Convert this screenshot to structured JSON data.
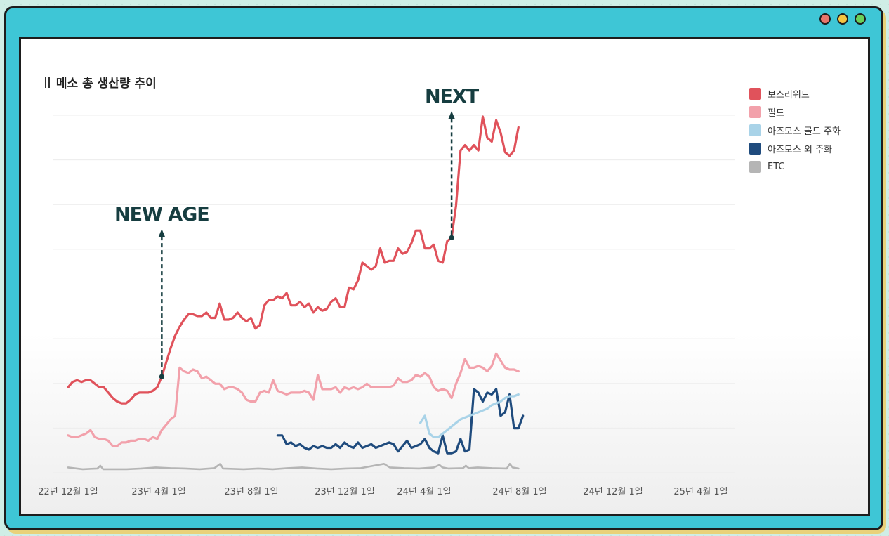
{
  "window": {
    "buttons": [
      {
        "name": "close",
        "color": "#e8756b"
      },
      {
        "name": "minimize",
        "color": "#f5c542"
      },
      {
        "name": "maximize",
        "color": "#6ad05a"
      }
    ]
  },
  "chart_data": {
    "type": "line",
    "title": "메소 총 생산량 추이",
    "xlabel": "",
    "ylabel": "",
    "x_ticks": [
      "22년 12월 1일",
      "23년 4월 1일",
      "23년 8월 1일",
      "23년 12월 1일",
      "24년 4월 1일",
      "24년 8월 1일",
      "24년 12월 1일",
      "25년 4월 1일"
    ],
    "y_axis": "unlabeled (relative scale 0-100)",
    "ylim": [
      0,
      100
    ],
    "grid": "horizontal",
    "legend_position": "right",
    "series": [
      {
        "name": "보스리워드",
        "color": "#e0525b",
        "points": [
          [
            0,
            24
          ],
          [
            1,
            25.5
          ],
          [
            2,
            26
          ],
          [
            3,
            25.5
          ],
          [
            4,
            26
          ],
          [
            5,
            26
          ],
          [
            6,
            25
          ],
          [
            7,
            24
          ],
          [
            8,
            24
          ],
          [
            9,
            22.5
          ],
          [
            10,
            21
          ],
          [
            11,
            20
          ],
          [
            12,
            19.5
          ],
          [
            13,
            19.5
          ],
          [
            14,
            20.5
          ],
          [
            15,
            22
          ],
          [
            16,
            22.5
          ],
          [
            17,
            22.5
          ],
          [
            18,
            22.5
          ],
          [
            19,
            23
          ],
          [
            20,
            24
          ],
          [
            21,
            27
          ],
          [
            22,
            31
          ],
          [
            23,
            35
          ],
          [
            24,
            38.5
          ],
          [
            25,
            41
          ],
          [
            26,
            43
          ],
          [
            27,
            44.5
          ],
          [
            28,
            44.5
          ],
          [
            29,
            44
          ],
          [
            30,
            44
          ],
          [
            31,
            45
          ],
          [
            32,
            43.5
          ],
          [
            33,
            43.5
          ],
          [
            34,
            47.5
          ],
          [
            35,
            43
          ],
          [
            36,
            43
          ],
          [
            37,
            43.5
          ],
          [
            38,
            45
          ],
          [
            39,
            43.5
          ],
          [
            40,
            42.5
          ],
          [
            41,
            43.5
          ],
          [
            42,
            40.5
          ],
          [
            43,
            41.5
          ],
          [
            44,
            47
          ],
          [
            45,
            48.5
          ],
          [
            46,
            48.5
          ],
          [
            47,
            49.5
          ],
          [
            48,
            49
          ],
          [
            49,
            50.5
          ],
          [
            50,
            47
          ],
          [
            51,
            47
          ],
          [
            52,
            48
          ],
          [
            53,
            46.5
          ],
          [
            54,
            47.5
          ],
          [
            55,
            45
          ],
          [
            56,
            46.5
          ],
          [
            57,
            45.5
          ],
          [
            58,
            46
          ],
          [
            59,
            48
          ],
          [
            60,
            49
          ],
          [
            61,
            46.5
          ],
          [
            62,
            46.5
          ],
          [
            63,
            52
          ],
          [
            64,
            51.5
          ],
          [
            65,
            54
          ],
          [
            66,
            59
          ],
          [
            67,
            58
          ],
          [
            68,
            57
          ],
          [
            69,
            58
          ],
          [
            70,
            63
          ],
          [
            71,
            59
          ],
          [
            72,
            59.5
          ],
          [
            73,
            59.5
          ],
          [
            74,
            63
          ],
          [
            75,
            61.5
          ],
          [
            76,
            62
          ],
          [
            77,
            64.5
          ],
          [
            78,
            68
          ],
          [
            79,
            68
          ],
          [
            80,
            63
          ],
          [
            81,
            63
          ],
          [
            82,
            64
          ],
          [
            83,
            59.5
          ],
          [
            84,
            59
          ],
          [
            85,
            65
          ],
          [
            86,
            66
          ],
          [
            87,
            75
          ],
          [
            88,
            90.5
          ],
          [
            89,
            92
          ],
          [
            90,
            90.5
          ],
          [
            91,
            92
          ],
          [
            92,
            90.5
          ],
          [
            93,
            100
          ],
          [
            94,
            94
          ],
          [
            95,
            93
          ],
          [
            96,
            99
          ],
          [
            97,
            95.5
          ],
          [
            98,
            90
          ],
          [
            99,
            89
          ],
          [
            100,
            90.5
          ],
          [
            101,
            97
          ]
        ]
      },
      {
        "name": "필드",
        "color": "#f2a1ab",
        "points": [
          [
            0,
            10.5
          ],
          [
            1,
            10
          ],
          [
            2,
            10
          ],
          [
            3,
            10.5
          ],
          [
            4,
            11
          ],
          [
            5,
            12
          ],
          [
            6,
            10
          ],
          [
            7,
            9.5
          ],
          [
            8,
            9.5
          ],
          [
            9,
            9
          ],
          [
            10,
            7.5
          ],
          [
            11,
            7.5
          ],
          [
            12,
            8.5
          ],
          [
            13,
            8.5
          ],
          [
            14,
            9
          ],
          [
            15,
            9
          ],
          [
            16,
            9.5
          ],
          [
            17,
            9.5
          ],
          [
            18,
            9
          ],
          [
            19,
            10
          ],
          [
            20,
            9.5
          ],
          [
            21,
            12
          ],
          [
            22,
            13.5
          ],
          [
            23,
            15
          ],
          [
            24,
            16
          ],
          [
            25,
            29.5
          ],
          [
            26,
            28.5
          ],
          [
            27,
            28
          ],
          [
            28,
            29
          ],
          [
            29,
            28.5
          ],
          [
            30,
            26.5
          ],
          [
            31,
            27
          ],
          [
            32,
            26
          ],
          [
            33,
            25
          ],
          [
            34,
            25
          ],
          [
            35,
            23.5
          ],
          [
            36,
            24
          ],
          [
            37,
            24
          ],
          [
            38,
            23.5
          ],
          [
            39,
            22.5
          ],
          [
            40,
            20.5
          ],
          [
            41,
            20
          ],
          [
            42,
            20
          ],
          [
            43,
            22.5
          ],
          [
            44,
            23
          ],
          [
            45,
            22.5
          ],
          [
            46,
            26
          ],
          [
            47,
            23
          ],
          [
            48,
            22.5
          ],
          [
            49,
            22
          ],
          [
            50,
            22.5
          ],
          [
            51,
            22.5
          ],
          [
            52,
            22.5
          ],
          [
            53,
            23
          ],
          [
            54,
            22.5
          ],
          [
            55,
            20.5
          ],
          [
            56,
            27.5
          ],
          [
            57,
            23.5
          ],
          [
            58,
            23.5
          ],
          [
            59,
            23.5
          ],
          [
            60,
            24
          ],
          [
            61,
            22.5
          ],
          [
            62,
            24
          ],
          [
            63,
            23.5
          ],
          [
            64,
            24
          ],
          [
            65,
            23.5
          ],
          [
            66,
            24
          ],
          [
            67,
            25
          ],
          [
            68,
            24
          ],
          [
            69,
            24
          ],
          [
            70,
            24
          ],
          [
            71,
            24
          ],
          [
            72,
            24
          ],
          [
            73,
            24.5
          ],
          [
            74,
            26.5
          ],
          [
            75,
            25.5
          ],
          [
            76,
            25.5
          ],
          [
            77,
            26
          ],
          [
            78,
            27.5
          ],
          [
            79,
            27
          ],
          [
            80,
            28
          ],
          [
            81,
            27
          ],
          [
            82,
            24
          ],
          [
            83,
            23
          ],
          [
            84,
            23.5
          ],
          [
            85,
            23
          ],
          [
            86,
            21
          ],
          [
            87,
            25
          ],
          [
            88,
            28
          ],
          [
            89,
            32
          ],
          [
            90,
            29.5
          ],
          [
            91,
            29.5
          ],
          [
            92,
            30
          ],
          [
            93,
            29.5
          ],
          [
            94,
            28.5
          ],
          [
            95,
            30
          ],
          [
            96,
            33.5
          ],
          [
            97,
            31.5
          ],
          [
            98,
            29.5
          ],
          [
            99,
            29
          ],
          [
            100,
            29
          ],
          [
            101,
            28.5
          ]
        ]
      },
      {
        "name": "아즈모스 골드 주화",
        "color": "#a9d3e8",
        "points": [
          [
            79,
            14
          ],
          [
            80,
            16
          ],
          [
            81,
            11
          ],
          [
            82,
            10
          ],
          [
            83,
            10
          ],
          [
            84,
            11
          ],
          [
            85,
            12
          ],
          [
            86,
            13
          ],
          [
            87,
            14
          ],
          [
            88,
            15
          ],
          [
            89,
            15.5
          ],
          [
            90,
            16
          ],
          [
            91,
            16.5
          ],
          [
            92,
            17
          ],
          [
            93,
            17.5
          ],
          [
            94,
            18
          ],
          [
            95,
            19
          ],
          [
            96,
            19.5
          ],
          [
            97,
            20
          ],
          [
            98,
            21
          ],
          [
            99,
            21.5
          ],
          [
            100,
            21.5
          ],
          [
            101,
            22
          ]
        ]
      },
      {
        "name": "아즈모스 외 주화",
        "color": "#1f4b7d",
        "points": [
          [
            47,
            10.5
          ],
          [
            48,
            10.5
          ],
          [
            49,
            8
          ],
          [
            50,
            8.5
          ],
          [
            51,
            7.5
          ],
          [
            52,
            8
          ],
          [
            53,
            7
          ],
          [
            54,
            6.5
          ],
          [
            55,
            7.5
          ],
          [
            56,
            7
          ],
          [
            57,
            7.5
          ],
          [
            58,
            7
          ],
          [
            59,
            7
          ],
          [
            60,
            8
          ],
          [
            61,
            7
          ],
          [
            62,
            8.5
          ],
          [
            63,
            7.5
          ],
          [
            64,
            7
          ],
          [
            65,
            8.5
          ],
          [
            66,
            7
          ],
          [
            67,
            7.5
          ],
          [
            68,
            8
          ],
          [
            69,
            7
          ],
          [
            70,
            7.5
          ],
          [
            71,
            8
          ],
          [
            72,
            8.5
          ],
          [
            73,
            8
          ],
          [
            74,
            6
          ],
          [
            75,
            7.5
          ],
          [
            76,
            9
          ],
          [
            77,
            7
          ],
          [
            78,
            7.5
          ],
          [
            79,
            8
          ],
          [
            80,
            9.5
          ],
          [
            81,
            7
          ],
          [
            82,
            6
          ],
          [
            83,
            5.5
          ],
          [
            84,
            10.5
          ],
          [
            85,
            5.5
          ],
          [
            86,
            5.5
          ],
          [
            87,
            6
          ],
          [
            88,
            9.5
          ],
          [
            89,
            6
          ],
          [
            90,
            6.5
          ],
          [
            91,
            23.5
          ],
          [
            92,
            22.5
          ],
          [
            93,
            20
          ],
          [
            94,
            22.5
          ],
          [
            95,
            22
          ],
          [
            96,
            23.5
          ],
          [
            97,
            16
          ],
          [
            98,
            17
          ],
          [
            99,
            22
          ],
          [
            100,
            12.5
          ],
          [
            101,
            12.5
          ],
          [
            102,
            16
          ]
        ]
      },
      {
        "name": "ETC",
        "color": "#b5b5b5",
        "points": [
          [
            0,
            1.5
          ],
          [
            5,
            1
          ],
          [
            10,
            1.2
          ],
          [
            11,
            2
          ],
          [
            12,
            1
          ],
          [
            20,
            1
          ],
          [
            25,
            1.2
          ],
          [
            30,
            1.5
          ],
          [
            35,
            1.3
          ],
          [
            40,
            1.2
          ],
          [
            45,
            1
          ],
          [
            50,
            1.3
          ],
          [
            52,
            2.5
          ],
          [
            53,
            1.2
          ],
          [
            60,
            1
          ],
          [
            65,
            1.2
          ],
          [
            70,
            1
          ],
          [
            75,
            1.3
          ],
          [
            80,
            1.5
          ],
          [
            85,
            1.2
          ],
          [
            90,
            1
          ],
          [
            95,
            1.2
          ],
          [
            100,
            1.3
          ],
          [
            108,
            2.5
          ],
          [
            110,
            1.5
          ],
          [
            115,
            1.3
          ],
          [
            120,
            1.2
          ],
          [
            125,
            1.5
          ],
          [
            127,
            2.2
          ],
          [
            128,
            1.5
          ],
          [
            130,
            1.2
          ],
          [
            135,
            1.3
          ],
          [
            136,
            2
          ],
          [
            137,
            1.3
          ],
          [
            140,
            1.5
          ],
          [
            145,
            1.3
          ],
          [
            150,
            1.2
          ],
          [
            151,
            2.5
          ],
          [
            152,
            1.5
          ],
          [
            154,
            1.2
          ]
        ]
      }
    ],
    "annotations": [
      {
        "label": "NEW AGE",
        "color": "#163d40",
        "at_series": "보스리워드",
        "at_x": 21
      },
      {
        "label": "NEXT",
        "color": "#163d40",
        "at_series": "보스리워드",
        "at_x": 86
      }
    ]
  }
}
